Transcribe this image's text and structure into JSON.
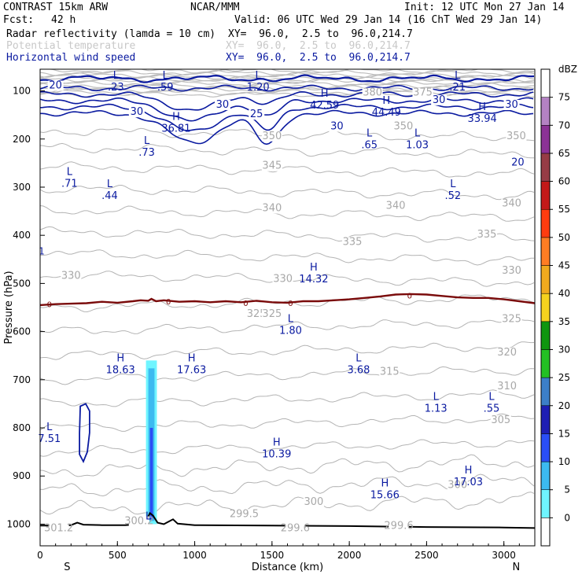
{
  "header": {
    "title": "CONTRAST 15km ARW",
    "center": "NCAR/MMM",
    "init": "Init: 12 UTC Mon 27 Jan 14",
    "fcst_label": "Fcst:",
    "fcst_value": "42 h",
    "valid": "Valid: 06 UTC Wed 29 Jan 14 (16 ChT Wed 29 Jan 14)",
    "fields": [
      {
        "name": "Radar reflectivity (lamda = 10 cm)",
        "xy": "XY=  96.0,  2.5 to  96.0,214.7",
        "color": "#000000"
      },
      {
        "name": "Potential temperature",
        "xy": "XY=  96.0,  2.5 to  96.0,214.7",
        "color": "#c8c8c8"
      },
      {
        "name": "Horizontal wind speed",
        "xy": "XY=  96.0,  2.5 to  96.0,214.7",
        "color": "#0a1aa0"
      }
    ]
  },
  "chart_data": {
    "type": "contour-cross-section",
    "xlabel": "Distance (km)",
    "ylabel": "Pressure (hPa)",
    "xlim": [
      0,
      3200
    ],
    "ylim": [
      1045,
      55
    ],
    "x_ticks": [
      0,
      500,
      1000,
      1500,
      2000,
      2500,
      3000
    ],
    "y_ticks": [
      100,
      200,
      300,
      400,
      500,
      600,
      700,
      800,
      900,
      1000
    ],
    "x_end_labels": {
      "left": "S",
      "right": "N"
    },
    "colorbar": {
      "unit": "dBZ",
      "levels": [
        0,
        5,
        10,
        15,
        20,
        25,
        30,
        35,
        40,
        45,
        50,
        55,
        60,
        65,
        70,
        75
      ],
      "colors": [
        "#ffffff",
        "#6ff5ff",
        "#3cbaf0",
        "#2a4ef6",
        "#1e1eb4",
        "#3c7fc8",
        "#23c023",
        "#0f960f",
        "#f5d21e",
        "#f0aa1e",
        "#ff7d23",
        "#ff3c0f",
        "#c31919",
        "#963c46",
        "#8c3296",
        "#b482c3",
        "#ffffff"
      ]
    },
    "theta_labels": [
      {
        "x": 2150,
        "p": 110,
        "text": "380"
      },
      {
        "x": 2475,
        "p": 110,
        "text": "375"
      },
      {
        "x": 1500,
        "p": 200,
        "text": "350"
      },
      {
        "x": 2350,
        "p": 180,
        "text": "350"
      },
      {
        "x": 3080,
        "p": 200,
        "text": "350"
      },
      {
        "x": 1500,
        "p": 262,
        "text": "345"
      },
      {
        "x": 1500,
        "p": 350,
        "text": "340"
      },
      {
        "x": 2300,
        "p": 345,
        "text": "340"
      },
      {
        "x": 3050,
        "p": 340,
        "text": "340"
      },
      {
        "x": 2890,
        "p": 405,
        "text": "335"
      },
      {
        "x": 2020,
        "p": 420,
        "text": "335"
      },
      {
        "x": 200,
        "p": 490,
        "text": "330"
      },
      {
        "x": 1570,
        "p": 497,
        "text": "330"
      },
      {
        "x": 3050,
        "p": 480,
        "text": "330"
      },
      {
        "x": 1400,
        "p": 570,
        "text": "325"
      },
      {
        "x": 1500,
        "p": 570,
        "text": "325"
      },
      {
        "x": 3050,
        "p": 580,
        "text": "325"
      },
      {
        "x": 3020,
        "p": 650,
        "text": "320"
      },
      {
        "x": 2260,
        "p": 690,
        "text": "315"
      },
      {
        "x": 3020,
        "p": 720,
        "text": "310"
      },
      {
        "x": 2980,
        "p": 790,
        "text": "305"
      },
      {
        "x": 1770,
        "p": 960,
        "text": "300"
      },
      {
        "x": 2700,
        "p": 925,
        "text": "300"
      },
      {
        "x": 1320,
        "p": 985,
        "text": "299.5"
      },
      {
        "x": 1650,
        "p": 1015,
        "text": "299.6"
      },
      {
        "x": 2320,
        "p": 1010,
        "text": "299.6"
      },
      {
        "x": 120,
        "p": 1015,
        "text": "301.2"
      },
      {
        "x": 640,
        "p": 1000,
        "text": "300.2"
      }
    ],
    "wind_labels": [
      {
        "x": 100,
        "p": 95,
        "text": "20"
      },
      {
        "x": 3050,
        "p": 135,
        "text": "30"
      },
      {
        "x": 625,
        "p": 150,
        "text": "30"
      },
      {
        "x": 1180,
        "p": 135,
        "text": "30"
      },
      {
        "x": 1400,
        "p": 155,
        "text": "25"
      },
      {
        "x": 1920,
        "p": 180,
        "text": "30"
      },
      {
        "x": 2580,
        "p": 125,
        "text": "30"
      },
      {
        "x": 3090,
        "p": 255,
        "text": "20"
      }
    ],
    "extrema": [
      {
        "x": 490,
        "p": 75,
        "type": "L",
        "value": ".23"
      },
      {
        "x": 810,
        "p": 75,
        "type": "L",
        "value": ".59"
      },
      {
        "x": 1410,
        "p": 75,
        "type": "L",
        "value": "1.20"
      },
      {
        "x": 2700,
        "p": 75,
        "type": "L",
        "value": ".21"
      },
      {
        "x": 1840,
        "p": 112,
        "type": "H",
        "value": "42.59"
      },
      {
        "x": 2240,
        "p": 127,
        "type": "H",
        "value": "44.49"
      },
      {
        "x": 2860,
        "p": 140,
        "type": "H",
        "value": "33.94"
      },
      {
        "x": 880,
        "p": 160,
        "type": "H",
        "value": "36.81"
      },
      {
        "x": 690,
        "p": 210,
        "type": "L",
        "value": ".73"
      },
      {
        "x": 2130,
        "p": 195,
        "type": "L",
        "value": ".65"
      },
      {
        "x": 2440,
        "p": 195,
        "type": "L",
        "value": "1.03"
      },
      {
        "x": 190,
        "p": 275,
        "type": "L",
        "value": ".71"
      },
      {
        "x": 450,
        "p": 300,
        "type": "L",
        "value": ".44"
      },
      {
        "x": 2670,
        "p": 300,
        "type": "L",
        "value": ".52"
      },
      {
        "x": 1770,
        "p": 473,
        "type": "H",
        "value": "14.32"
      },
      {
        "x": 1620,
        "p": 580,
        "type": "L",
        "value": "1.80"
      },
      {
        "x": 520,
        "p": 662,
        "type": "H",
        "value": "18.63"
      },
      {
        "x": 980,
        "p": 662,
        "type": "H",
        "value": "17.63"
      },
      {
        "x": 2060,
        "p": 662,
        "type": "L",
        "value": "3.68"
      },
      {
        "x": 2560,
        "p": 742,
        "type": "L",
        "value": "1.13"
      },
      {
        "x": 2920,
        "p": 742,
        "type": "L",
        "value": ".55"
      },
      {
        "x": 60,
        "p": 805,
        "type": "L",
        "value": "7.51"
      },
      {
        "x": 1530,
        "p": 837,
        "type": "H",
        "value": "10.39"
      },
      {
        "x": 2230,
        "p": 922,
        "type": "H",
        "value": "15.66"
      },
      {
        "x": 2770,
        "p": 895,
        "type": "H",
        "value": "17.03"
      },
      {
        "x": 700,
        "p": 990,
        "type": "L",
        "value": ""
      }
    ],
    "zero_isotherm_labels": [
      {
        "x": 60,
        "p": 543,
        "text": "0"
      },
      {
        "x": 830,
        "p": 537,
        "text": "0"
      },
      {
        "x": 1330,
        "p": 540,
        "text": "0"
      },
      {
        "x": 1620,
        "p": 540,
        "text": "0"
      },
      {
        "x": 2390,
        "p": 525,
        "text": "0"
      }
    ],
    "edge_labels": [
      {
        "x": 10,
        "p": 440,
        "text": "1"
      }
    ],
    "zero_isotherm": [
      [
        0,
        545
      ],
      [
        100,
        543
      ],
      [
        200,
        542
      ],
      [
        300,
        541
      ],
      [
        400,
        538
      ],
      [
        500,
        540
      ],
      [
        600,
        537
      ],
      [
        650,
        535
      ],
      [
        700,
        536
      ],
      [
        720,
        532
      ],
      [
        750,
        537
      ],
      [
        800,
        535
      ],
      [
        900,
        538
      ],
      [
        1000,
        537
      ],
      [
        1100,
        539
      ],
      [
        1200,
        537
      ],
      [
        1300,
        539
      ],
      [
        1400,
        536
      ],
      [
        1500,
        539
      ],
      [
        1600,
        540
      ],
      [
        1700,
        537
      ],
      [
        1800,
        537
      ],
      [
        1900,
        535
      ],
      [
        2000,
        533
      ],
      [
        2100,
        530
      ],
      [
        2200,
        527
      ],
      [
        2300,
        523
      ],
      [
        2400,
        522
      ],
      [
        2500,
        523
      ],
      [
        2600,
        526
      ],
      [
        2700,
        529
      ],
      [
        2800,
        530
      ],
      [
        2900,
        530
      ],
      [
        3000,
        533
      ],
      [
        3100,
        537
      ],
      [
        3200,
        541
      ]
    ],
    "terrain": [
      [
        0,
        1003
      ],
      [
        100,
        1003
      ],
      [
        200,
        1002
      ],
      [
        240,
        997
      ],
      [
        280,
        1001
      ],
      [
        400,
        1002
      ],
      [
        550,
        1002
      ],
      [
        650,
        1000
      ],
      [
        690,
        990
      ],
      [
        710,
        977
      ],
      [
        730,
        982
      ],
      [
        760,
        997
      ],
      [
        800,
        1000
      ],
      [
        830,
        995
      ],
      [
        860,
        990
      ],
      [
        890,
        999
      ],
      [
        1000,
        1002
      ],
      [
        1500,
        1003
      ],
      [
        2000,
        1004
      ],
      [
        2500,
        1006
      ],
      [
        3000,
        1007
      ],
      [
        3200,
        1008
      ]
    ],
    "reflectivity_column": {
      "x_range": [
        700,
        740
      ],
      "p_range": [
        660,
        1000
      ],
      "max_dbz": 20
    },
    "small_wind_contour": [
      [
        260,
        755
      ],
      [
        295,
        750
      ],
      [
        320,
        765
      ],
      [
        320,
        810
      ],
      [
        305,
        850
      ],
      [
        280,
        870
      ],
      [
        255,
        855
      ],
      [
        255,
        810
      ],
      [
        260,
        755
      ]
    ]
  }
}
